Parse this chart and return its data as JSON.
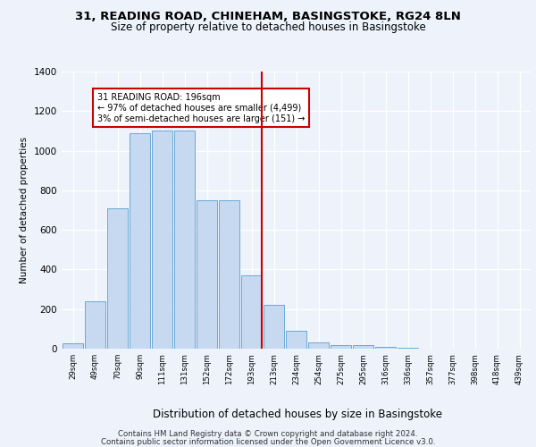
{
  "title_line1": "31, READING ROAD, CHINEHAM, BASINGSTOKE, RG24 8LN",
  "title_line2": "Size of property relative to detached houses in Basingstoke",
  "xlabel": "Distribution of detached houses by size in Basingstoke",
  "ylabel": "Number of detached properties",
  "footer_line1": "Contains HM Land Registry data © Crown copyright and database right 2024.",
  "footer_line2": "Contains public sector information licensed under the Open Government Licence v3.0.",
  "annotation_line1": "31 READING ROAD: 196sqm",
  "annotation_line2": "← 97% of detached houses are smaller (4,499)",
  "annotation_line3": "3% of semi-detached houses are larger (151) →",
  "bar_labels": [
    "29sqm",
    "49sqm",
    "70sqm",
    "90sqm",
    "111sqm",
    "131sqm",
    "152sqm",
    "172sqm",
    "193sqm",
    "213sqm",
    "234sqm",
    "254sqm",
    "275sqm",
    "295sqm",
    "316sqm",
    "336sqm",
    "357sqm",
    "377sqm",
    "398sqm",
    "418sqm",
    "439sqm"
  ],
  "bar_values": [
    28,
    240,
    710,
    1090,
    1100,
    1100,
    750,
    750,
    370,
    220,
    90,
    30,
    20,
    18,
    10,
    5,
    0,
    0,
    0,
    0,
    0
  ],
  "bar_color": "#c6d9f0",
  "bar_edge_color": "#6aaad4",
  "vline_x_index": 8.45,
  "vline_color": "#cc0000",
  "annotation_box_color": "#cc0000",
  "ylim": [
    0,
    1400
  ],
  "yticks": [
    0,
    200,
    400,
    600,
    800,
    1000,
    1200,
    1400
  ],
  "background_color": "#edf2fb",
  "plot_background_color": "#edf2fb",
  "grid_color": "#ffffff"
}
